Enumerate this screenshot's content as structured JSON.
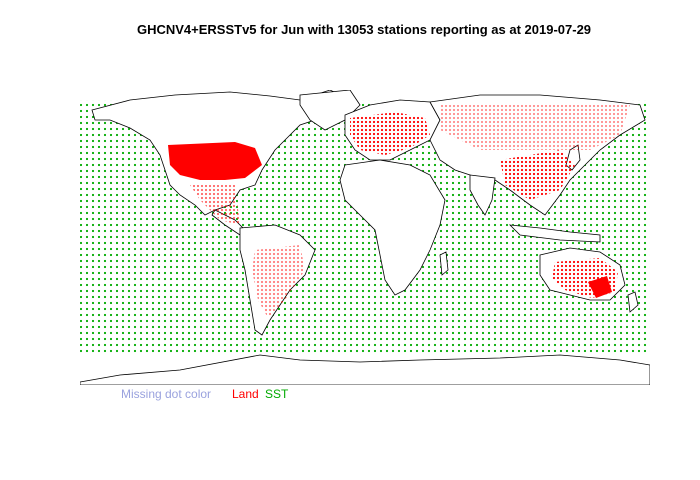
{
  "title": "GHCNV4+ERSSTv5 for Jun with 13053 stations reporting as at 2019-07-29",
  "legend": {
    "missing": "Missing dot color",
    "land": "Land",
    "sst": "SST"
  },
  "colors": {
    "land_station": "#ff0000",
    "sst_station": "#00aa00",
    "missing": "#9aa2de",
    "coastline": "#000000"
  },
  "map": {
    "projection": "equirectangular",
    "lon_range": [
      -180,
      180
    ],
    "lat_range": [
      -90,
      90
    ]
  }
}
